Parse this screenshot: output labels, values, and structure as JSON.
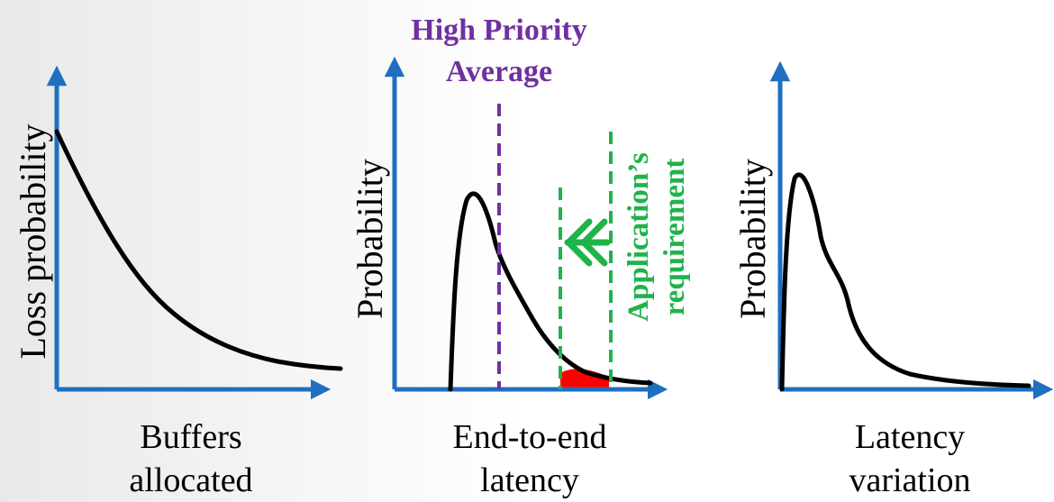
{
  "colors": {
    "axis": "#1f6fc0",
    "curve": "#000000",
    "average": "#7030a0",
    "requirement": "#1fb34a",
    "tail_fill": "#ff0000"
  },
  "panels": [
    {
      "ylabel": "Loss probability",
      "xlabel_line1": "Buffers",
      "xlabel_line2": "allocated"
    },
    {
      "ylabel": "Probability",
      "xlabel_line1": "End-to-end",
      "xlabel_line2": "latency",
      "average_label_line1": "High Priority",
      "average_label_line2": "Average",
      "requirement_label_line1": "Application’s",
      "requirement_label_line2": "requirement"
    },
    {
      "ylabel": "Probability",
      "xlabel_line1": "Latency",
      "xlabel_line2": "variation"
    }
  ]
}
